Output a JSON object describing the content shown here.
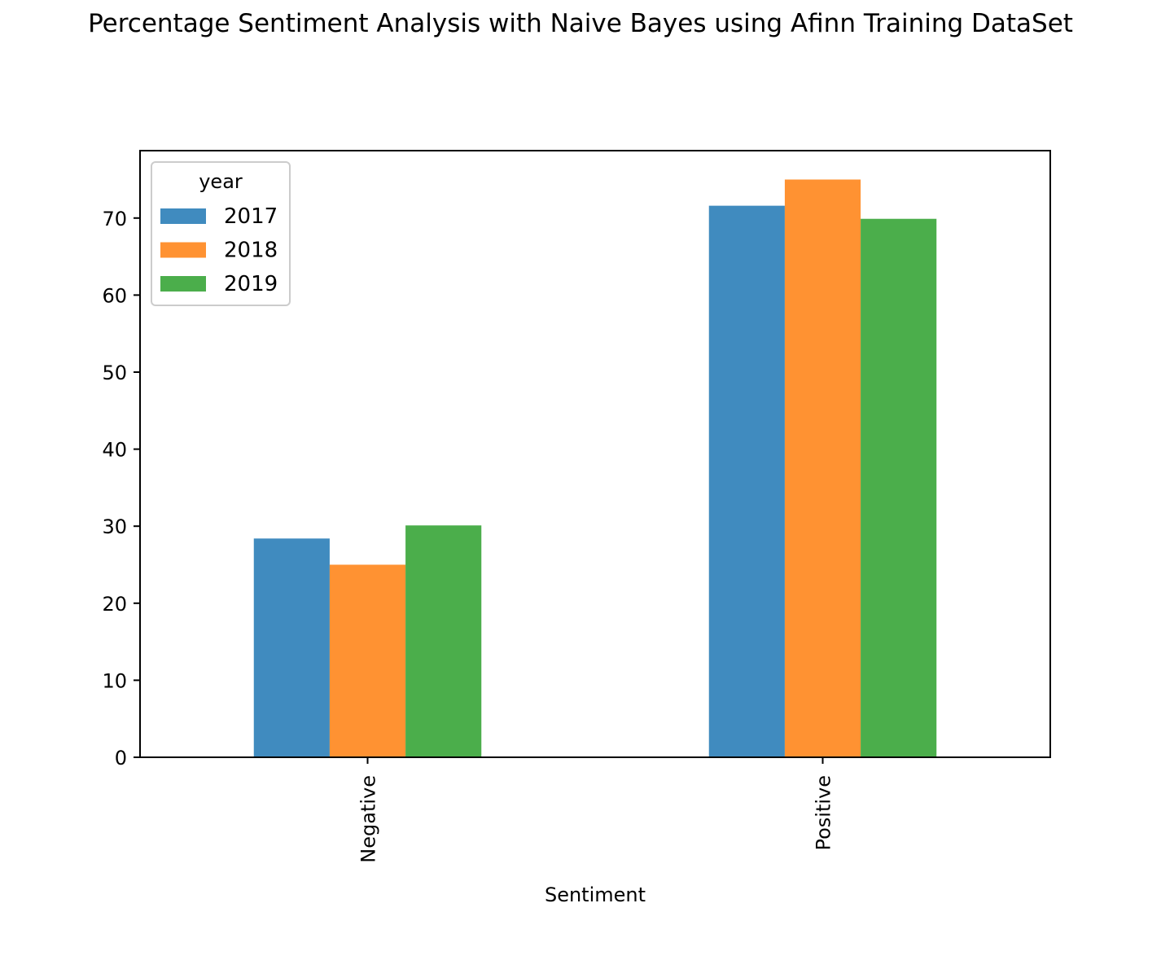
{
  "chart_data": {
    "type": "bar",
    "title": "Percentage Sentiment Analysis with Naive Bayes using Afinn Training DataSet",
    "xlabel": "Sentiment",
    "ylabel": "",
    "categories": [
      "Negative",
      "Positive"
    ],
    "series": [
      {
        "name": "2017",
        "values": [
          28.4,
          71.6
        ],
        "color": "#1f77b4"
      },
      {
        "name": "2018",
        "values": [
          25.0,
          75.0
        ],
        "color": "#ff7f0e"
      },
      {
        "name": "2019",
        "values": [
          30.1,
          69.9
        ],
        "color": "#2ca02c"
      }
    ],
    "bar_opacity": 0.85,
    "ylim": [
      0,
      78.75
    ],
    "yticks": [
      0,
      10,
      20,
      30,
      40,
      50,
      60,
      70
    ],
    "legend": {
      "title": "year",
      "placement": "upper-left"
    },
    "grid": false,
    "tick_label_rotation": 90
  }
}
